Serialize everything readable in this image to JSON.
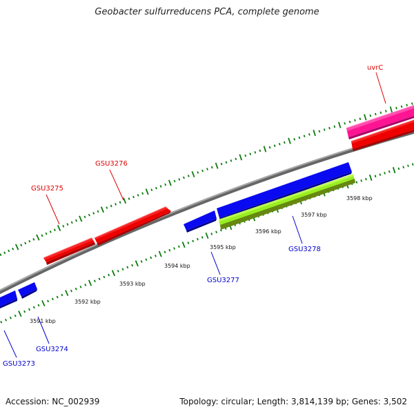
{
  "title": "Geobacter sulfurreducens PCA, complete genome",
  "footer": {
    "accession": "Accession: NC_002939",
    "info": "Topology: circular; Length: 3,814,139 bp; Genes: 3,502"
  },
  "colors": {
    "backbone": "#8c8c8c",
    "tick": "#0a7a0a",
    "forward_gene": "#ee0000",
    "reverse_gene": "#0a0af0",
    "pink_feature": "#ff1493",
    "green_feature_light": "#99ee22",
    "green_feature_dark": "#668811",
    "forward_label": "#dd0000",
    "reverse_label": "#0000cc",
    "scale_label": "#111111"
  },
  "scale_labels": [
    "3591 kbp",
    "3592 kbp",
    "3593 kbp",
    "3594 kbp",
    "3595 kbp",
    "3596 kbp",
    "3597 kbp",
    "3598 kbp"
  ],
  "genes_forward": [
    "GSU3275",
    "GSU3276",
    "uvrC"
  ],
  "genes_reverse": [
    "GSU3273",
    "GSU3274",
    "GSU3277",
    "GSU3278"
  ]
}
